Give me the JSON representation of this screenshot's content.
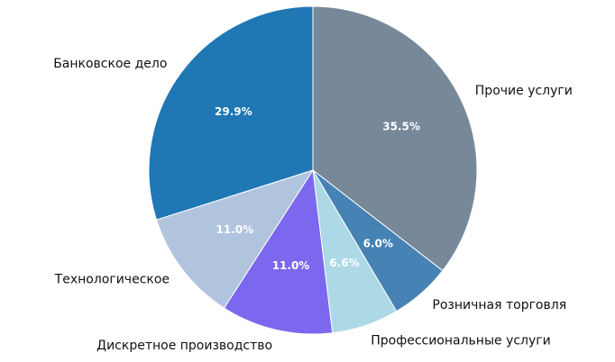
{
  "chart_data": {
    "type": "pie",
    "slices": [
      {
        "label": "Прочие услуги",
        "value": 35.5,
        "pct_label": "35.5%",
        "color": "#778899"
      },
      {
        "label": "Розничная торговля",
        "value": 6.0,
        "pct_label": "6.0%",
        "color": "#4682b4"
      },
      {
        "label": "Профессиональные услуги",
        "value": 6.6,
        "pct_label": "6.6%",
        "color": "#add8e6"
      },
      {
        "label": "Дискретное производство",
        "value": 11.0,
        "pct_label": "11.0%",
        "color": "#7b68ee"
      },
      {
        "label": "Технологическое",
        "value": 11.0,
        "pct_label": "11.0%",
        "color": "#b0c4de"
      },
      {
        "label": "Банковское дело",
        "value": 29.9,
        "pct_label": "29.9%",
        "color": "#1f77b4"
      }
    ],
    "start_angle": 90,
    "direction": "clockwise"
  }
}
